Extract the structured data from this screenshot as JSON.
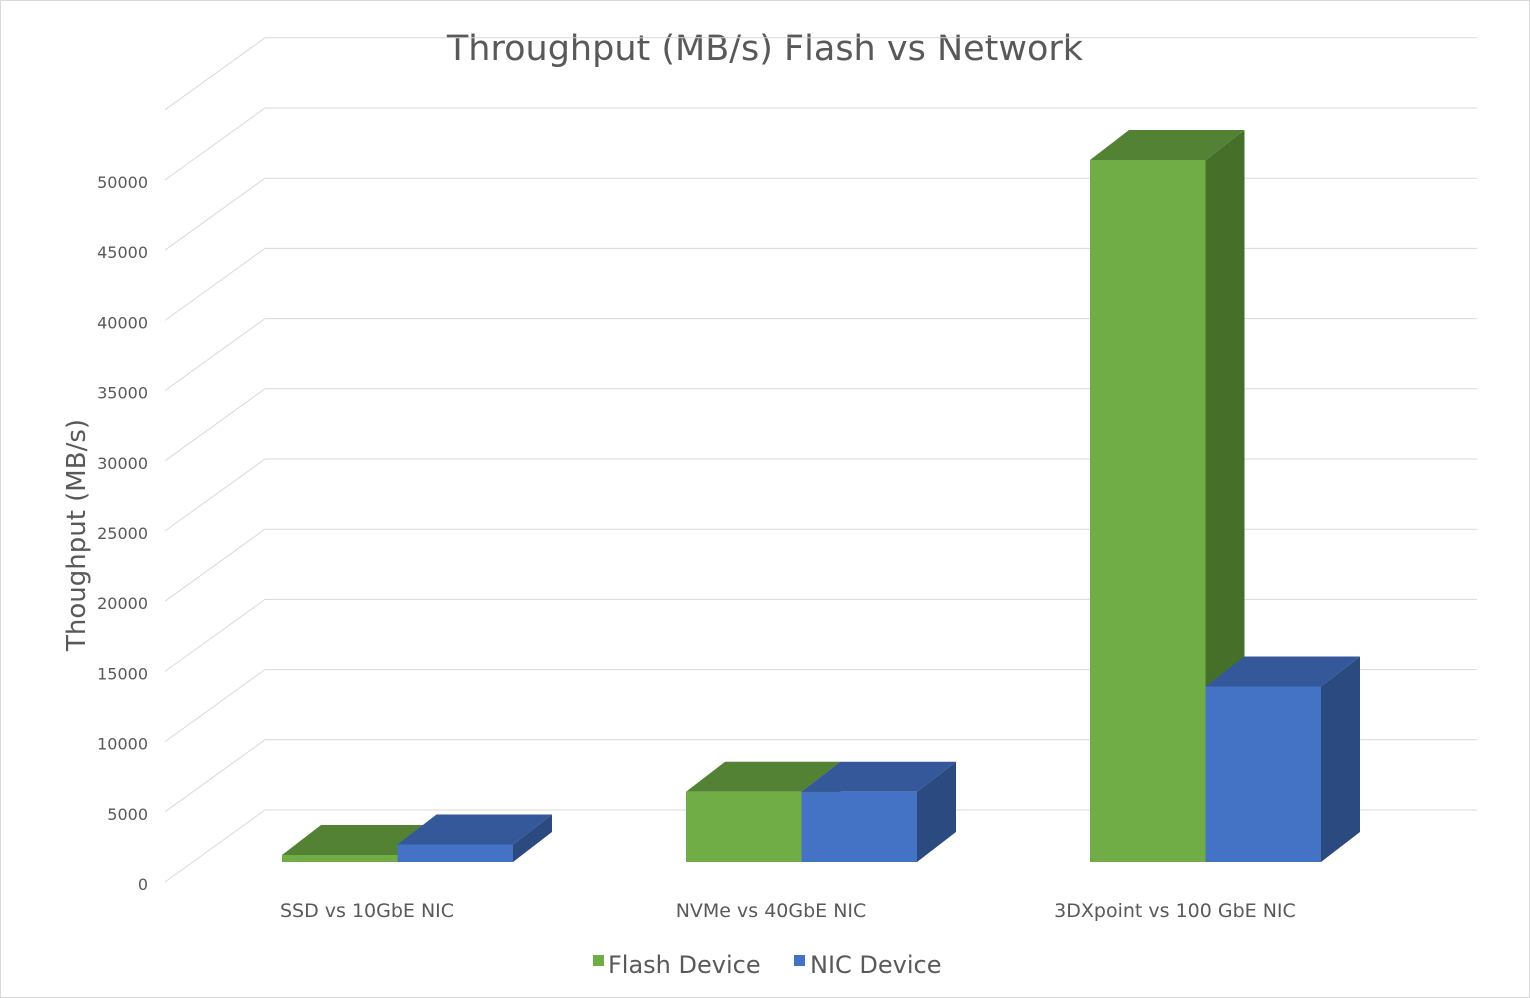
{
  "chart_data": {
    "type": "bar",
    "style": "3d-clustered-column",
    "title": "Throughput (MB/s) Flash vs Network",
    "xlabel": "",
    "ylabel": "Thoughput (MB/s)",
    "categories": [
      "SSD vs 10GbE NIC",
      "NVMe vs 40GbE NIC",
      "3DXpoint vs 100 GbE NIC"
    ],
    "series": [
      {
        "name": "Flash Device",
        "values": [
          500,
          5000,
          50000
        ],
        "color": "#70AD47",
        "top_color": "#548235",
        "side_color": "#466F2A"
      },
      {
        "name": "NIC Device",
        "values": [
          1250,
          5000,
          12500
        ],
        "color": "#4472C4",
        "top_color": "#34589A",
        "side_color": "#2A4A80"
      }
    ],
    "ylim": [
      0,
      55000
    ],
    "yticks": [
      "0",
      "5000",
      "10000",
      "15000",
      "20000",
      "25000",
      "30000",
      "35000",
      "40000",
      "45000",
      "50000"
    ],
    "grid": true,
    "legend": "bottom"
  }
}
